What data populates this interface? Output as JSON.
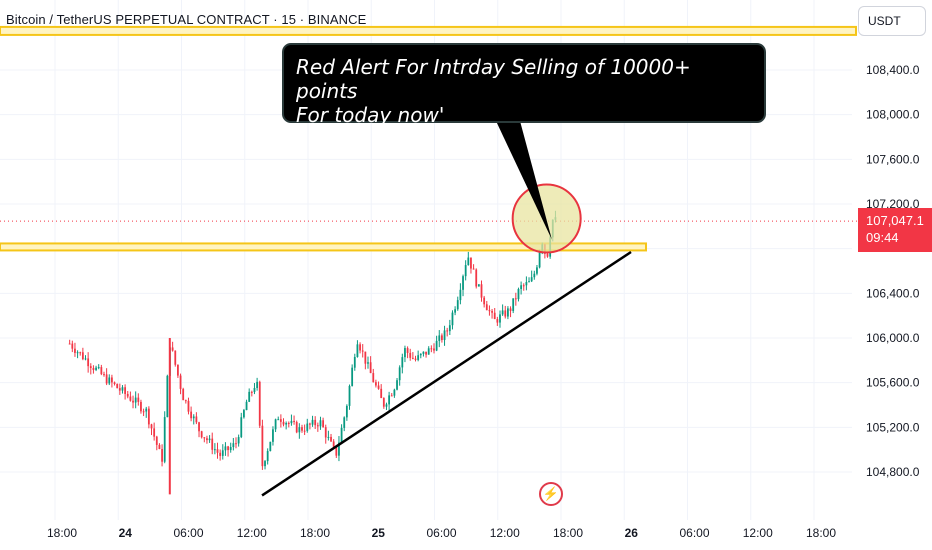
{
  "header": {
    "title": "Bitcoin / TetherUS PERPETUAL CONTRACT · 15 · BINANCE",
    "currency": "USDT"
  },
  "callout": {
    "line1": "Red Alert For Intrday Selling of 10000+ points",
    "line2": "For today now'"
  },
  "price_label": {
    "price": "107,047.1",
    "countdown": "09:44"
  },
  "icons": {
    "flash": "flash-icon"
  },
  "colors": {
    "up": "#089981",
    "down": "#f23645",
    "highlight_band": "#f5c518",
    "circle_fill": "#e8e4a0",
    "circle_stroke": "#e8343f",
    "trendline": "#000000",
    "grid": "#f0f3fa"
  },
  "chart_data": {
    "type": "candlestick",
    "symbol": "Bitcoin / TetherUS PERPETUAL CONTRACT",
    "interval": "15",
    "exchange": "BINANCE",
    "y_axis": {
      "ticks": [
        104800,
        105200,
        105600,
        106000,
        106400,
        106800,
        107200,
        107600,
        108000,
        108400
      ],
      "tick_labels": [
        "104,800.0",
        "105,200.0",
        "105,600.0",
        "106,000.0",
        "106,400.0",
        "",
        "107,200.0",
        "107,600.0",
        "108,000.0",
        "108,400.0"
      ],
      "range": [
        104480,
        108640
      ]
    },
    "x_axis": {
      "tick_labels": [
        "18:00",
        "24",
        "06:00",
        "12:00",
        "18:00",
        "25",
        "06:00",
        "12:00",
        "18:00",
        "26",
        "06:00",
        "12:00",
        "18:00"
      ],
      "bold_labels": [
        "24",
        "25",
        "26"
      ]
    },
    "last_price": 107047.1,
    "resistance_level": 106820,
    "top_band_level": 108750,
    "trendline": {
      "from": [
        "24 13:00",
        104590
      ],
      "to": [
        "26 00:00",
        106770
      ]
    },
    "highlight_circle_center": [
      "25 16:00",
      107070
    ],
    "price_path": [
      [
        "23 18:00",
        106020
      ],
      [
        "23 22:00",
        105650
      ],
      [
        "24 02:00",
        105350
      ],
      [
        "24 03:30",
        104900
      ],
      [
        "24 04:15",
        105960
      ],
      [
        "24 05:30",
        105480
      ],
      [
        "24 07:00",
        105180
      ],
      [
        "24 09:00",
        104950
      ],
      [
        "24 10:30",
        105050
      ],
      [
        "24 11:30",
        105420
      ],
      [
        "24 12:30",
        105620
      ],
      [
        "24 13:00",
        104850
      ],
      [
        "24 14:30",
        105300
      ],
      [
        "24 16:30",
        105180
      ],
      [
        "24 18:30",
        105250
      ],
      [
        "24 20:00",
        104950
      ],
      [
        "24 21:00",
        105380
      ],
      [
        "24 22:00",
        106000
      ],
      [
        "24 23:00",
        105750
      ],
      [
        "25 00:30",
        105400
      ],
      [
        "25 01:30",
        105550
      ],
      [
        "25 02:30",
        105900
      ],
      [
        "25 03:30",
        105800
      ],
      [
        "25 05:00",
        105900
      ],
      [
        "25 06:30",
        106050
      ],
      [
        "25 07:30",
        106350
      ],
      [
        "25 08:30",
        106750
      ],
      [
        "25 09:30",
        106450
      ],
      [
        "25 11:00",
        106150
      ],
      [
        "25 12:30",
        106250
      ],
      [
        "25 13:30",
        106450
      ],
      [
        "25 14:30",
        106500
      ],
      [
        "25 15:00",
        106620
      ],
      [
        "25 15:30",
        106900
      ],
      [
        "25 16:00",
        106700
      ],
      [
        "25 16:30",
        107060
      ],
      [
        "25 17:00",
        107047
      ]
    ]
  }
}
